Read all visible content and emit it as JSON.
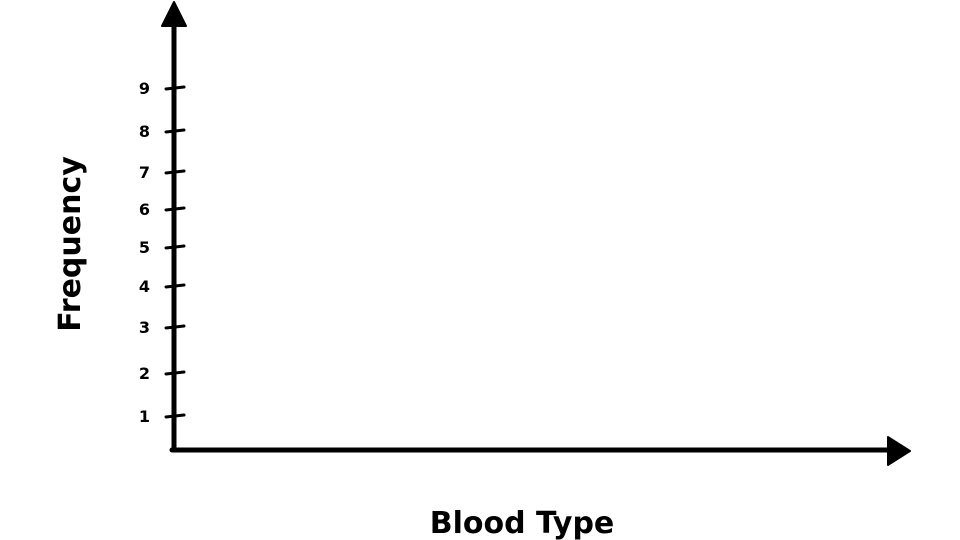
{
  "chart_data": {
    "type": "bar",
    "title": "",
    "xlabel": "Blood Type",
    "ylabel": "Frequency",
    "categories": [],
    "series": [],
    "y_ticks": [
      {
        "value": 1,
        "label": "1"
      },
      {
        "value": 2,
        "label": "2"
      },
      {
        "value": 3,
        "label": "3"
      },
      {
        "value": 4,
        "label": "4"
      },
      {
        "value": 5,
        "label": "5"
      },
      {
        "value": 6,
        "label": "6"
      },
      {
        "value": 7,
        "label": "7"
      },
      {
        "value": 8,
        "label": "8"
      },
      {
        "value": 9,
        "label": "9"
      }
    ],
    "ylim": [
      0,
      10
    ],
    "grid": false,
    "colors": {
      "axis": "#000000",
      "background": "#ffffff"
    }
  }
}
